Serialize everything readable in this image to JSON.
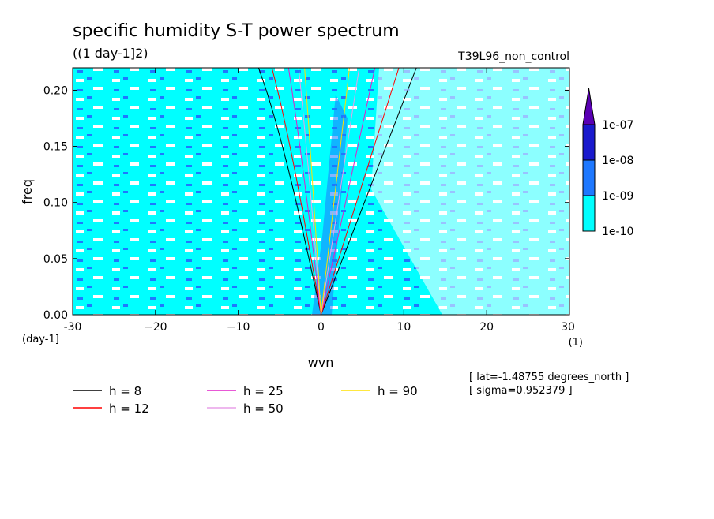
{
  "chart_data": {
    "type": "heatmap",
    "title": "specific humidity S-T power spectrum",
    "subtitle": "((1 day-1]2)",
    "run_label": "T39L96_non_control",
    "xlabel": "wvn",
    "ylabel": "freq",
    "x_unit_label": "(day-1]",
    "x_unit_right": "(1)",
    "xlim": [
      -30,
      30
    ],
    "ylim": [
      0,
      0.22
    ],
    "x_ticks": [
      -30,
      -20,
      -10,
      0,
      10,
      20,
      30
    ],
    "x_tick_labels": [
      "-30",
      "−20",
      "−10",
      "0",
      "10",
      "20",
      "30"
    ],
    "y_ticks": [
      0,
      0.05,
      0.1,
      0.15,
      0.2
    ],
    "y_tick_labels": [
      "0.00",
      "0.05",
      "0.10",
      "0.15",
      "0.20"
    ],
    "colorbar": {
      "levels": [
        "1e-10",
        "1e-09",
        "1e-08",
        "1e-07"
      ],
      "colors": [
        "#00ffff",
        "#1e78ff",
        "#1a1acd",
        "#5a00b4"
      ]
    },
    "dispersion_curves": [
      {
        "name": "h =  8",
        "h": 8,
        "color": "#000000"
      },
      {
        "name": "h = 12",
        "h": 12,
        "color": "#ff0000"
      },
      {
        "name": "h = 25",
        "h": 25,
        "color": "#e020c8"
      },
      {
        "name": "h = 50",
        "h": 50,
        "color": "#e8a0e8"
      },
      {
        "name": "h = 90",
        "h": 90,
        "color": "#ffe000"
      }
    ],
    "annotations": [
      "[ lat=-1.48755 degrees_north ]",
      "[ sigma=0.952379 ]"
    ]
  },
  "colors": {
    "base": "#00ffff",
    "background": "#ffffff"
  }
}
